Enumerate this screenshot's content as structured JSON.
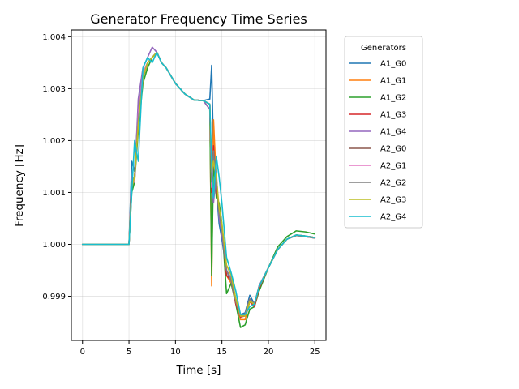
{
  "chart_data": {
    "type": "line",
    "title": "Generator Frequency Time Series",
    "xlabel": "Time [s]",
    "ylabel": "Frequency [Hz]",
    "xlim": [
      -1.2,
      26.2
    ],
    "ylim": [
      0.99815,
      1.00413
    ],
    "xticks": [
      0,
      5,
      10,
      15,
      20,
      25
    ],
    "yticks": [
      0.999,
      1.0,
      1.001,
      1.002,
      1.003,
      1.004
    ],
    "ytick_labels": [
      "0.999",
      "1.000",
      "1.001",
      "1.002",
      "1.003",
      "1.004"
    ],
    "grid": true,
    "legend": {
      "title": "Generators",
      "placement": "outside-right"
    },
    "series": [
      {
        "name": "A1_G0",
        "color": "#1f77b4",
        "x": [
          0,
          5,
          5.3,
          5.6,
          6.0,
          6.5,
          7.0,
          7.5,
          8.0,
          8.5,
          9.0,
          10,
          11,
          12,
          13,
          13.7,
          13.9,
          14.1,
          14.4,
          14.7,
          15.0,
          15.5,
          16,
          16.5,
          17,
          17.5,
          18,
          18.5,
          19,
          20,
          21,
          22,
          23,
          24,
          25
        ],
        "y": [
          1.0,
          1.0,
          1.0016,
          1.0014,
          1.0026,
          1.0033,
          1.0035,
          1.0036,
          1.0037,
          1.0035,
          1.0034,
          1.0031,
          1.0029,
          1.00278,
          1.00277,
          1.0028,
          1.00345,
          1.0017,
          1.0011,
          1.0004,
          1.0001,
          0.9995,
          0.99925,
          0.99893,
          0.99865,
          0.99868,
          0.99902,
          0.99885,
          0.9992,
          0.99955,
          0.9999,
          1.0001,
          1.00018,
          1.00016,
          1.00013
        ]
      },
      {
        "name": "A1_G1",
        "color": "#ff7f0e",
        "x": [
          0,
          5,
          5.3,
          5.6,
          6.0,
          6.5,
          7.0,
          7.5,
          8.0,
          8.5,
          9.0,
          10,
          11,
          12,
          13,
          13.7,
          13.9,
          14.1,
          14.4,
          14.7,
          15.0,
          15.5,
          16,
          16.5,
          17,
          17.5,
          18,
          18.5,
          19,
          20,
          21,
          22,
          23,
          24,
          25
        ],
        "y": [
          1.0,
          1.0,
          1.0012,
          1.0013,
          1.0024,
          1.0032,
          1.0035,
          1.0036,
          1.0037,
          1.0035,
          1.0034,
          1.0031,
          1.0029,
          1.00278,
          1.00277,
          1.0027,
          0.9992,
          1.0024,
          1.0012,
          1.0006,
          1.0003,
          0.9994,
          0.99925,
          0.9989,
          0.99855,
          0.99855,
          0.9989,
          0.9988,
          0.99915,
          0.99955,
          0.9999,
          1.0001,
          1.00018,
          1.00016,
          1.00013
        ]
      },
      {
        "name": "A1_G2",
        "color": "#2ca02c",
        "x": [
          0,
          5,
          5.3,
          5.6,
          6.0,
          6.5,
          7.0,
          7.5,
          8.0,
          8.5,
          9.0,
          10,
          11,
          12,
          13,
          13.7,
          13.9,
          14.1,
          14.4,
          14.7,
          15.0,
          15.5,
          16,
          16.5,
          17,
          17.5,
          18,
          18.5,
          19,
          20,
          21,
          22,
          23,
          24,
          25
        ],
        "y": [
          1.0,
          1.0,
          1.001,
          1.0012,
          1.0022,
          1.0031,
          1.0034,
          1.0036,
          1.0037,
          1.0035,
          1.0034,
          1.0031,
          1.0029,
          1.00278,
          1.00277,
          1.0026,
          0.9994,
          1.0016,
          1.0009,
          1.0008,
          1.0004,
          0.99905,
          0.99925,
          0.99885,
          0.9984,
          0.99845,
          0.99875,
          0.9988,
          0.9991,
          0.99955,
          0.99995,
          1.00015,
          1.00026,
          1.00024,
          1.0002
        ]
      },
      {
        "name": "A1_G3",
        "color": "#d62728",
        "x": [
          0,
          5,
          5.3,
          5.6,
          6.0,
          6.5,
          7.0,
          7.5,
          8.0,
          8.5,
          9.0,
          10,
          11,
          12,
          13,
          13.7,
          13.9,
          14.1,
          14.4,
          14.7,
          15.0,
          15.5,
          16,
          16.5,
          17,
          17.5,
          18,
          18.5,
          19,
          20,
          21,
          22,
          23,
          24,
          25
        ],
        "y": [
          1.0,
          1.0,
          1.0011,
          1.0013,
          1.0023,
          1.0032,
          1.0035,
          1.0036,
          1.0037,
          1.0035,
          1.0034,
          1.0031,
          1.0029,
          1.00278,
          1.00277,
          1.0027,
          1.001,
          1.0019,
          1.001,
          1.0007,
          1.0003,
          0.9994,
          0.9993,
          0.99885,
          0.9986,
          0.99862,
          0.9989,
          0.9988,
          0.99915,
          0.99955,
          0.9999,
          1.0001,
          1.00018,
          1.00016,
          1.00013
        ]
      },
      {
        "name": "A1_G4",
        "color": "#9467bd",
        "x": [
          0,
          5,
          5.3,
          5.6,
          6.0,
          6.5,
          7.0,
          7.5,
          8.0,
          8.5,
          9.0,
          10,
          11,
          12,
          13,
          13.7,
          13.9,
          14.1,
          14.4,
          14.7,
          15.0,
          15.5,
          16,
          16.5,
          17,
          17.5,
          18,
          18.5,
          19,
          20,
          21,
          22,
          23,
          24,
          25
        ],
        "y": [
          1.0,
          1.0,
          1.0013,
          1.0012,
          1.0028,
          1.0034,
          1.0036,
          1.0038,
          1.0037,
          1.0035,
          1.0034,
          1.0031,
          1.0029,
          1.00278,
          1.00277,
          1.0026,
          1.0013,
          1.0008,
          1.0014,
          1.0005,
          1.0002,
          0.9995,
          0.99935,
          0.99895,
          0.99865,
          0.99865,
          0.99895,
          0.99885,
          0.9992,
          0.99955,
          0.9999,
          1.0001,
          1.00018,
          1.00016,
          1.00013
        ]
      },
      {
        "name": "A2_G0",
        "color": "#8c564b",
        "x": [
          0,
          5,
          5.3,
          5.6,
          6.0,
          6.5,
          7.0,
          7.5,
          8.0,
          8.5,
          9.0,
          10,
          11,
          12,
          13,
          13.7,
          13.9,
          14.1,
          14.4,
          14.7,
          15.0,
          15.5,
          16,
          16.5,
          17,
          17.5,
          18,
          18.5,
          19,
          20,
          21,
          22,
          23,
          24,
          25
        ],
        "y": [
          1.0,
          1.0,
          1.0012,
          1.0013,
          1.0024,
          1.0032,
          1.0035,
          1.0036,
          1.0037,
          1.0035,
          1.0034,
          1.0031,
          1.0029,
          1.00278,
          1.00277,
          1.0027,
          1.0012,
          1.0018,
          1.0011,
          1.0006,
          1.0003,
          0.9995,
          0.9993,
          0.9989,
          0.99862,
          0.99865,
          0.99895,
          0.99885,
          0.99918,
          0.99955,
          0.9999,
          1.0001,
          1.00017,
          1.00015,
          1.00012
        ]
      },
      {
        "name": "A2_G1",
        "color": "#e377c2",
        "x": [
          0,
          5,
          5.3,
          5.6,
          6.0,
          6.5,
          7.0,
          7.5,
          8.0,
          8.5,
          9.0,
          10,
          11,
          12,
          13,
          13.7,
          13.9,
          14.1,
          14.4,
          14.7,
          15.0,
          15.5,
          16,
          16.5,
          17,
          17.5,
          18,
          18.5,
          19,
          20,
          21,
          22,
          23,
          24,
          25
        ],
        "y": [
          1.0,
          1.0,
          1.0012,
          1.0012,
          1.0025,
          1.0033,
          1.0035,
          1.0036,
          1.0037,
          1.0035,
          1.0034,
          1.0031,
          1.0029,
          1.00278,
          1.00277,
          1.0027,
          1.0011,
          1.0017,
          1.0012,
          1.0006,
          1.0003,
          0.9995,
          0.9993,
          0.9989,
          0.99862,
          0.99865,
          0.99895,
          0.99885,
          0.99918,
          0.99955,
          0.9999,
          1.0001,
          1.00017,
          1.00015,
          1.00012
        ]
      },
      {
        "name": "A2_G2",
        "color": "#7f7f7f",
        "x": [
          0,
          5,
          5.3,
          5.6,
          6.0,
          6.5,
          7.0,
          7.5,
          8.0,
          8.5,
          9.0,
          10,
          11,
          12,
          13,
          13.7,
          13.9,
          14.1,
          14.4,
          14.7,
          15.0,
          15.5,
          16,
          16.5,
          17,
          17.5,
          18,
          18.5,
          19,
          20,
          21,
          22,
          23,
          24,
          25
        ],
        "y": [
          1.0,
          1.0,
          1.0012,
          1.0013,
          1.0024,
          1.0032,
          1.0035,
          1.0036,
          1.0037,
          1.0035,
          1.0034,
          1.0031,
          1.0029,
          1.00278,
          1.00277,
          1.0027,
          1.0012,
          1.0018,
          1.0011,
          1.0006,
          1.0003,
          0.9995,
          0.9993,
          0.9989,
          0.99862,
          0.99865,
          0.99895,
          0.99885,
          0.99918,
          0.99955,
          0.9999,
          1.0001,
          1.00017,
          1.00015,
          1.00012
        ]
      },
      {
        "name": "A2_G3",
        "color": "#bcbd22",
        "x": [
          0,
          5,
          5.3,
          5.6,
          6.0,
          6.5,
          7.0,
          7.5,
          8.0,
          8.5,
          9.0,
          10,
          11,
          12,
          13,
          13.7,
          13.9,
          14.1,
          14.4,
          14.7,
          15.0,
          15.5,
          16,
          16.5,
          17,
          17.5,
          18,
          18.5,
          19,
          20,
          21,
          22,
          23,
          24,
          25
        ],
        "y": [
          1.0,
          1.0,
          1.0011,
          1.0013,
          1.0023,
          1.0032,
          1.0035,
          1.0036,
          1.0037,
          1.0035,
          1.0034,
          1.0031,
          1.0029,
          1.00278,
          1.00277,
          1.0027,
          1.0014,
          1.0016,
          1.0013,
          1.0007,
          1.0004,
          0.9996,
          0.9994,
          0.99895,
          0.99862,
          0.99862,
          0.9989,
          0.99885,
          0.99918,
          0.99955,
          0.9999,
          1.0001,
          1.00018,
          1.00016,
          1.00013
        ]
      },
      {
        "name": "A2_G4",
        "color": "#17becf",
        "x": [
          0,
          5,
          5.3,
          5.6,
          6.0,
          6.5,
          7.0,
          7.5,
          8.0,
          8.5,
          9.0,
          10,
          11,
          12,
          13,
          13.7,
          13.9,
          14.1,
          14.4,
          14.7,
          15.0,
          15.5,
          16,
          16.5,
          17,
          17.5,
          18,
          18.5,
          19,
          20,
          21,
          22,
          23,
          24,
          25
        ],
        "y": [
          1.0,
          1.0,
          1.001,
          1.002,
          1.0016,
          1.0034,
          1.0036,
          1.0035,
          1.0037,
          1.0035,
          1.0034,
          1.0031,
          1.0029,
          1.00278,
          1.00277,
          1.0027,
          1.0015,
          1.0009,
          1.0017,
          1.0013,
          1.0008,
          0.99975,
          0.99945,
          0.9991,
          0.99865,
          0.99865,
          0.9988,
          0.99885,
          0.99918,
          0.99955,
          0.9999,
          1.0001,
          1.00018,
          1.00016,
          1.00013
        ]
      }
    ]
  }
}
